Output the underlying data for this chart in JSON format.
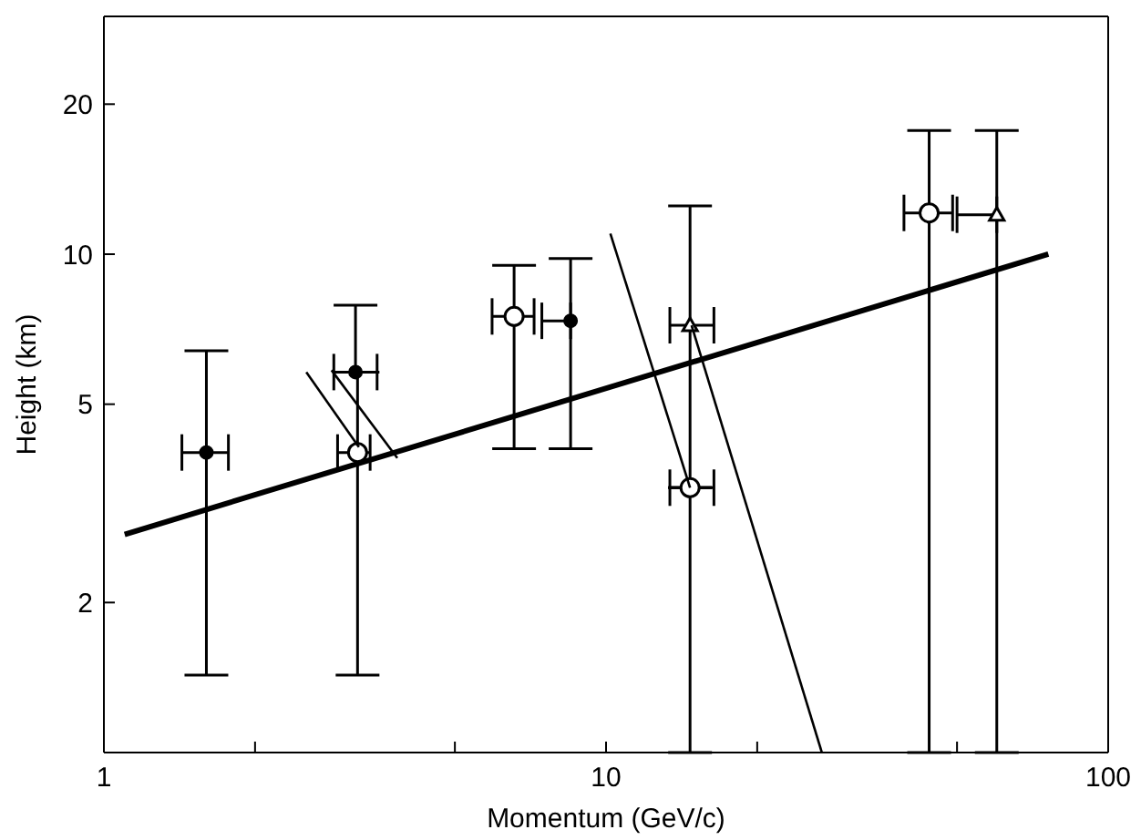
{
  "chart_data": {
    "type": "scatter",
    "xlabel": "Momentum (GeV/c)",
    "ylabel": "Height (km)",
    "log": "xy",
    "xlim": [
      1,
      100
    ],
    "ylim": [
      1,
      30
    ],
    "xticks": [
      1,
      {
        "value": 2,
        "label": null
      },
      {
        "value": 5,
        "label": null
      },
      10,
      {
        "value": 20,
        "label": null
      },
      {
        "value": 50,
        "label": null
      },
      100
    ],
    "yticks": [
      2,
      5,
      10,
      20
    ],
    "series": [
      {
        "type": "scatter",
        "marker": "circle-open",
        "color": "#000000",
        "x": [
          3.2,
          6.56,
          14.7,
          44
        ],
        "values": [
          4.0,
          7.5,
          3.4,
          12.1
        ],
        "errors": [
          [
            1.43,
            5.8
          ],
          [
            4.07,
            9.5
          ],
          null,
          [
            1,
            17.7
          ]
        ],
        "xerrors": [
          [
            2.92,
            3.39
          ],
          [
            5.93,
            7.19
          ],
          [
            13.4,
            16.4
          ],
          [
            39.2,
            49
          ]
        ]
      },
      {
        "type": "scatter",
        "marker": "circle",
        "color": "#000000",
        "x": [
          1.6,
          3.17,
          8.5
        ],
        "values": [
          4.0,
          5.8,
          7.35
        ],
        "errors": [
          [
            1.43,
            6.4
          ],
          [
            5.8,
            7.9
          ],
          [
            4.07,
            9.8
          ]
        ],
        "xerrors": [
          [
            1.43,
            1.77
          ],
          [
            2.87,
            3.5
          ],
          [
            7.45,
            8.5
          ]
        ]
      },
      {
        "type": "scatter",
        "marker": "triangle",
        "color": "#000000",
        "x": [
          14.7,
          60
        ],
        "values": [
          7.2,
          12
        ],
        "errors": [
          [
            1,
            12.5
          ],
          [
            1,
            17.7
          ]
        ],
        "xerrors": [
          [
            13.4,
            16.4
          ],
          [
            50,
            60
          ]
        ]
      },
      {
        "type": "line",
        "color": "#000000",
        "x": [
          1.1,
          76
        ],
        "values": [
          2.74,
          10.0
        ]
      },
      {
        "type": "line",
        "color": "#000000",
        "x": [
          2.53,
          3.22
        ],
        "values": [
          5.8,
          4.1
        ]
      },
      {
        "type": "line",
        "color": "#000000",
        "x": [
          2.84,
          3.84
        ],
        "values": [
          5.85,
          3.9
        ]
      },
      {
        "type": "line",
        "color": "#000000",
        "x": [
          10.2,
          14.7
        ],
        "values": [
          11.0,
          3.4
        ]
      },
      {
        "type": "line",
        "color": "#000000",
        "x": [
          14.8,
          26.9
        ],
        "values": [
          7.2,
          1.0
        ]
      }
    ]
  }
}
